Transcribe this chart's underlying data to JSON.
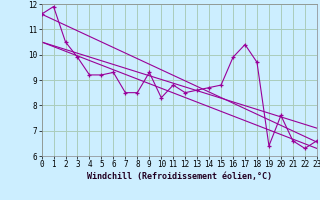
{
  "xlabel": "Windchill (Refroidissement éolien,°C)",
  "background_color": "#cceeff",
  "grid_color": "#aaccbb",
  "line_color": "#990099",
  "xlim": [
    0,
    23
  ],
  "ylim": [
    6,
    12
  ],
  "yticks": [
    6,
    7,
    8,
    9,
    10,
    11,
    12
  ],
  "xticks": [
    0,
    1,
    2,
    3,
    4,
    5,
    6,
    7,
    8,
    9,
    10,
    11,
    12,
    13,
    14,
    15,
    16,
    17,
    18,
    19,
    20,
    21,
    22,
    23
  ],
  "series": [
    [
      0,
      11.6
    ],
    [
      1,
      11.9
    ],
    [
      2,
      10.5
    ],
    [
      3,
      9.9
    ],
    [
      4,
      9.2
    ],
    [
      5,
      9.2
    ],
    [
      6,
      9.3
    ],
    [
      7,
      8.5
    ],
    [
      8,
      8.5
    ],
    [
      9,
      9.3
    ],
    [
      10,
      8.3
    ],
    [
      11,
      8.8
    ],
    [
      12,
      8.5
    ],
    [
      13,
      8.6
    ],
    [
      14,
      8.7
    ],
    [
      15,
      8.8
    ],
    [
      16,
      9.9
    ],
    [
      17,
      10.4
    ],
    [
      18,
      9.7
    ],
    [
      19,
      6.4
    ],
    [
      20,
      7.6
    ],
    [
      21,
      6.6
    ],
    [
      22,
      6.3
    ],
    [
      23,
      6.6
    ]
  ],
  "trend_lines": [
    {
      "x": [
        0,
        23
      ],
      "y": [
        11.6,
        6.55
      ]
    },
    {
      "x": [
        0,
        23
      ],
      "y": [
        10.5,
        7.1
      ]
    },
    {
      "x": [
        0,
        23
      ],
      "y": [
        10.5,
        6.3
      ]
    }
  ],
  "xlabel_fontsize": 6,
  "tick_fontsize": 5.5
}
